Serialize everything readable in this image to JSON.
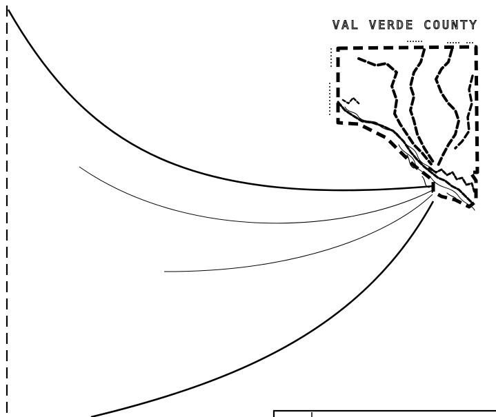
{
  "map": {
    "county_label": "VAL VERDE COUNTY"
  },
  "colors": {
    "line": "#000000",
    "background": "#ffffff"
  }
}
